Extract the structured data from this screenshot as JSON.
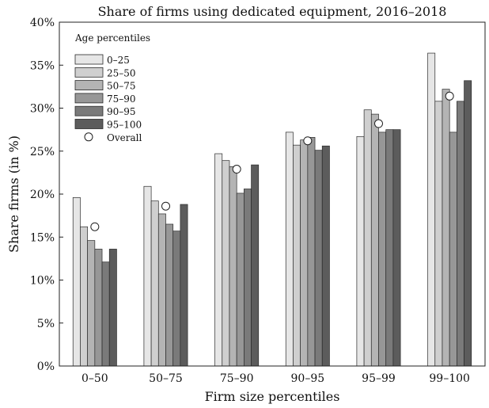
{
  "chart_data": {
    "type": "bar",
    "title": "Share of firms using dedicated equipment, 2016–2018",
    "xlabel": "Firm size percentiles",
    "ylabel": "Share firms (in %)",
    "ylim": [
      0,
      40
    ],
    "yticks": [
      0,
      5,
      10,
      15,
      20,
      25,
      30,
      35,
      40
    ],
    "ytick_labels": [
      "0%",
      "5%",
      "10%",
      "15%",
      "20%",
      "25%",
      "30%",
      "35%",
      "40%"
    ],
    "grid": false,
    "legend": {
      "title": "Age percentiles",
      "placement": "top-left"
    },
    "categories": [
      "0–50",
      "50–75",
      "75–90",
      "90–95",
      "95–99",
      "99–100"
    ],
    "series": [
      {
        "name": "0–25",
        "color": "#e6e6e6",
        "values": [
          19.6,
          20.9,
          24.7,
          27.2,
          26.7,
          36.4
        ]
      },
      {
        "name": "25–50",
        "color": "#cfcfcf",
        "values": [
          16.2,
          19.2,
          23.9,
          25.7,
          29.8,
          30.8
        ]
      },
      {
        "name": "50–75",
        "color": "#b4b4b4",
        "values": [
          14.6,
          17.7,
          23.2,
          26.3,
          29.3,
          32.2
        ]
      },
      {
        "name": "75–90",
        "color": "#979797",
        "values": [
          13.6,
          16.5,
          20.1,
          26.6,
          27.2,
          27.2
        ]
      },
      {
        "name": "90–95",
        "color": "#7a7a7a",
        "values": [
          12.1,
          15.7,
          20.6,
          25.1,
          27.5,
          30.8
        ]
      },
      {
        "name": "95–100",
        "color": "#5c5c5c",
        "values": [
          13.6,
          18.8,
          23.4,
          25.6,
          27.5,
          33.2
        ]
      }
    ],
    "overall": {
      "name": "Overall",
      "values": [
        16.2,
        18.6,
        22.9,
        26.2,
        28.2,
        31.4
      ]
    }
  }
}
